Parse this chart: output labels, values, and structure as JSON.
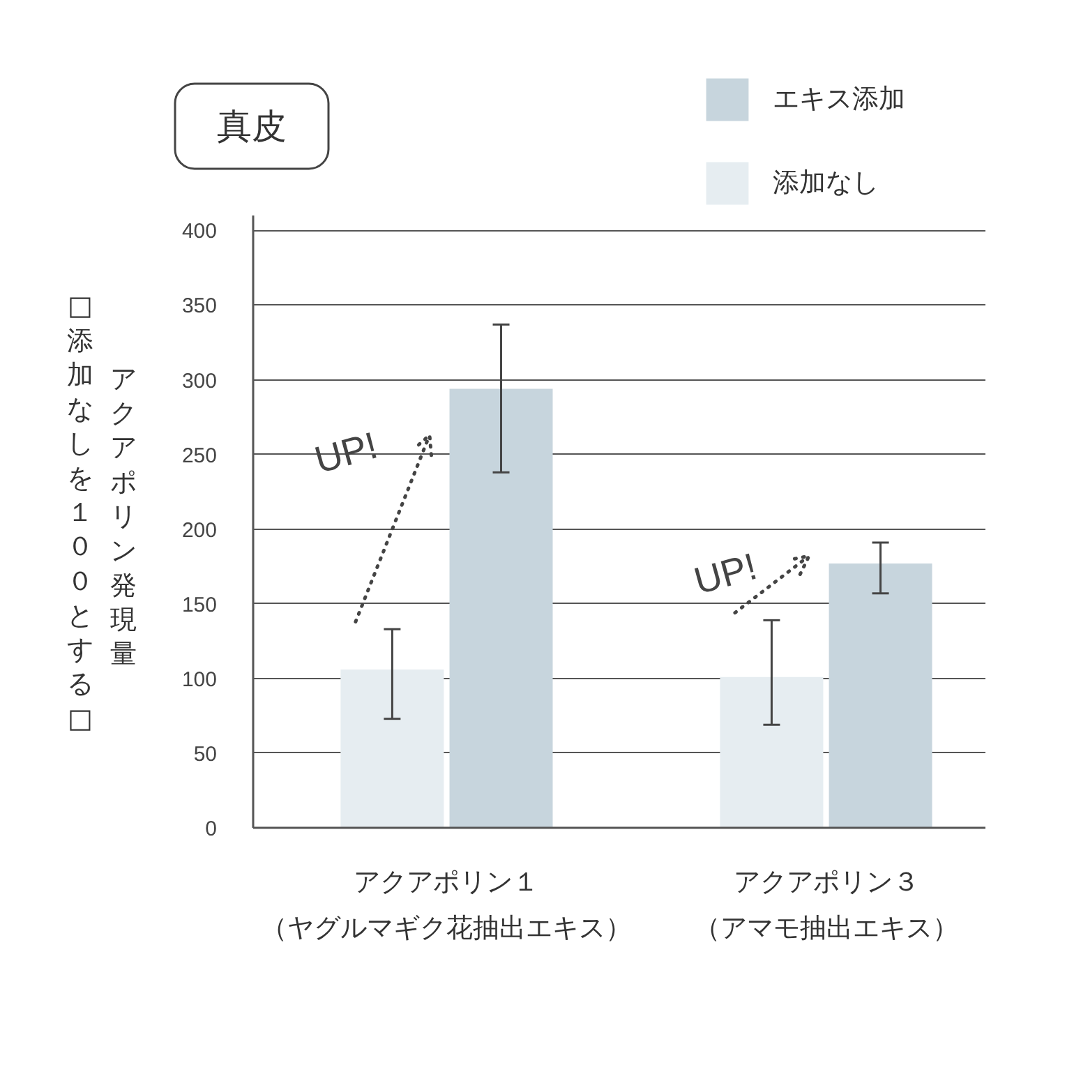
{
  "chart_data": {
    "type": "bar",
    "title": "真皮",
    "ylabel": "アクアポリン発現量",
    "categories": [
      "アクアポリン１（ヤグルマギク花抽出エキス）",
      "アクアポリン３（アマモ抽出エキス）"
    ],
    "series": [
      {
        "name": "添加なし",
        "color": "#e6edf1",
        "values": [
          106,
          101
        ],
        "errors": [
          [
            73,
            133
          ],
          [
            69,
            139
          ]
        ]
      },
      {
        "name": "エキス添加",
        "color": "#c7d5dd",
        "values": [
          294,
          177
        ],
        "errors": [
          [
            238,
            337
          ],
          [
            157,
            191
          ]
        ]
      }
    ],
    "ylim": [
      0,
      410
    ],
    "yticks": [
      0,
      50,
      100,
      150,
      200,
      250,
      300,
      350,
      400
    ],
    "grid": "y",
    "legend": "top right",
    "annotations": [
      "UP!",
      "UP!",
      "□添加なしを１００とする□"
    ]
  }
}
